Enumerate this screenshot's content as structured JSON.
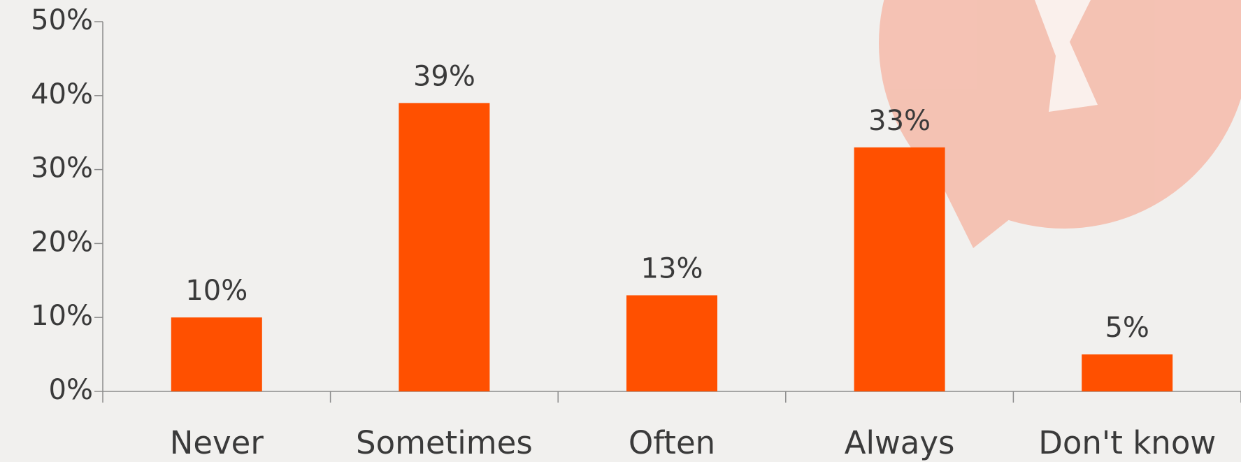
{
  "chart_data": {
    "type": "bar",
    "categories": [
      "Never",
      "Sometimes",
      "Often",
      "Always",
      "Don't know"
    ],
    "values": [
      10,
      39,
      13,
      33,
      5
    ],
    "value_labels": [
      "10%",
      "39%",
      "13%",
      "33%",
      "5%"
    ],
    "color": "#ff5000",
    "ylim": [
      0,
      50
    ],
    "yticks": [
      {
        "value": 0,
        "label": "0%"
      },
      {
        "value": 10,
        "label": "10%"
      },
      {
        "value": 20,
        "label": "20%"
      },
      {
        "value": 30,
        "label": "30%"
      },
      {
        "value": 40,
        "label": "40%"
      },
      {
        "value": 50,
        "label": "50%"
      }
    ]
  }
}
